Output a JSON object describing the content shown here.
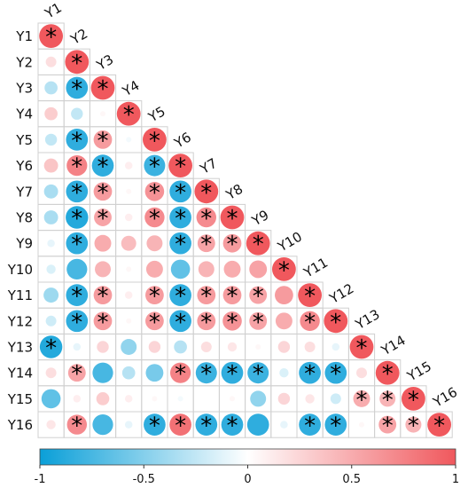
{
  "chart_data": {
    "type": "heatmap",
    "style": "lower-triangle correlation matrix, circles with significance stars",
    "variables": [
      "Y1",
      "Y2",
      "Y3",
      "Y4",
      "Y5",
      "Y6",
      "Y7",
      "Y8",
      "Y9",
      "Y10",
      "Y11",
      "Y12",
      "Y13",
      "Y14",
      "Y15",
      "Y16"
    ],
    "matrix_lower": [
      [
        1.0
      ],
      [
        0.2,
        1.0
      ],
      [
        -0.3,
        -0.85,
        1.0
      ],
      [
        0.3,
        -0.25,
        0.05,
        1.0
      ],
      [
        -0.25,
        -0.85,
        0.6,
        -0.05,
        1.0
      ],
      [
        0.35,
        0.75,
        -0.85,
        0.1,
        -0.8,
        1.0
      ],
      [
        -0.35,
        -0.85,
        0.6,
        0.05,
        0.65,
        -0.85,
        1.0
      ],
      [
        -0.35,
        -0.9,
        0.55,
        0.1,
        0.7,
        -0.85,
        0.7,
        1.0
      ],
      [
        -0.1,
        -0.85,
        0.5,
        0.4,
        0.45,
        -0.85,
        0.55,
        0.6,
        1.0
      ],
      [
        -0.15,
        -0.75,
        0.45,
        0.05,
        0.5,
        -0.65,
        0.45,
        0.5,
        0.55,
        1.0
      ],
      [
        -0.4,
        -0.85,
        0.6,
        0.1,
        0.6,
        -0.85,
        0.6,
        0.6,
        0.55,
        0.6,
        1.0
      ],
      [
        -0.2,
        -0.85,
        0.6,
        0.05,
        0.6,
        -0.85,
        0.6,
        0.65,
        0.55,
        0.5,
        0.7,
        1.0
      ],
      [
        -0.9,
        -0.1,
        0.25,
        -0.45,
        0.25,
        -0.3,
        0.2,
        0.15,
        0.05,
        0.25,
        0.2,
        -0.1,
        1.0
      ],
      [
        0.2,
        0.55,
        -0.75,
        -0.3,
        -0.55,
        0.75,
        -0.8,
        -0.85,
        -0.8,
        -0.15,
        -0.85,
        -0.85,
        0.2,
        1.0
      ],
      [
        -0.65,
        0.1,
        0.3,
        0.1,
        0.05,
        -0.05,
        0.0,
        0.05,
        -0.45,
        0.25,
        0.15,
        -0.2,
        0.5,
        0.45,
        1.0
      ],
      [
        0.15,
        0.7,
        -0.75,
        -0.1,
        -0.85,
        0.85,
        -0.85,
        -0.85,
        -0.85,
        -0.1,
        -0.85,
        -0.85,
        0.05,
        0.55,
        0.45,
        1.0
      ]
    ],
    "significant": [
      [
        1
      ],
      [
        0,
        1
      ],
      [
        0,
        1,
        1
      ],
      [
        0,
        0,
        0,
        1
      ],
      [
        0,
        1,
        1,
        0,
        1
      ],
      [
        0,
        1,
        1,
        0,
        1,
        1
      ],
      [
        0,
        1,
        1,
        0,
        1,
        1,
        1
      ],
      [
        0,
        1,
        1,
        0,
        1,
        1,
        1,
        1
      ],
      [
        0,
        1,
        0,
        0,
        0,
        1,
        1,
        1,
        1
      ],
      [
        0,
        0,
        0,
        0,
        0,
        0,
        0,
        0,
        0,
        1
      ],
      [
        0,
        1,
        1,
        0,
        1,
        1,
        1,
        1,
        1,
        0,
        1
      ],
      [
        0,
        1,
        1,
        0,
        1,
        1,
        1,
        1,
        1,
        0,
        1,
        1
      ],
      [
        1,
        0,
        0,
        0,
        0,
        0,
        0,
        0,
        0,
        0,
        0,
        0,
        1
      ],
      [
        0,
        1,
        0,
        0,
        0,
        1,
        1,
        1,
        1,
        0,
        1,
        1,
        0,
        1
      ],
      [
        0,
        0,
        0,
        0,
        0,
        0,
        0,
        0,
        0,
        0,
        0,
        0,
        1,
        1,
        1
      ],
      [
        0,
        1,
        0,
        0,
        1,
        1,
        1,
        1,
        0,
        0,
        1,
        1,
        0,
        1,
        1,
        1
      ]
    ],
    "star_symbol": "*",
    "colorbar": {
      "min": -1,
      "max": 1,
      "ticks": [
        -1,
        -0.5,
        0,
        0.5,
        1
      ],
      "tick_labels": [
        "-1",
        "-0.5",
        "0",
        "0.5",
        "1"
      ],
      "low_color": "#0a9fd8",
      "mid_color": "#ffffff",
      "high_color": "#f0585d"
    }
  }
}
